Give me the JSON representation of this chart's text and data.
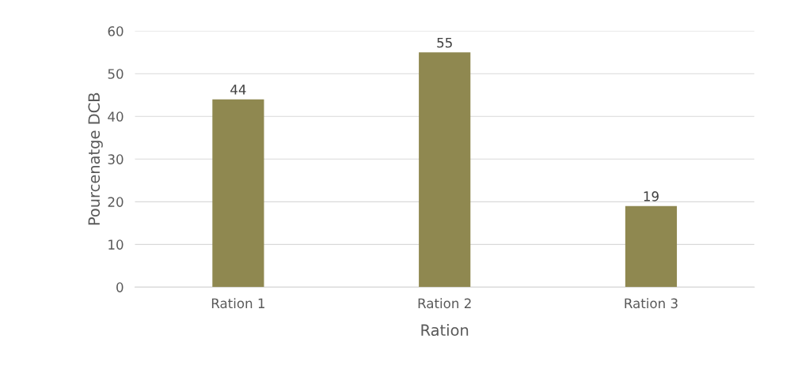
{
  "chart_data": {
    "type": "bar",
    "xlabel": "Ration",
    "ylabel": "Pourcenatge DCB",
    "categories": [
      "Ration 1",
      "Ration 2",
      "Ration 3"
    ],
    "values": [
      44,
      55,
      19
    ],
    "color": "#8f8850",
    "ylim": [
      0,
      60
    ],
    "yticks": [
      0,
      10,
      20,
      30,
      40,
      50,
      60
    ],
    "grid": "y",
    "data_labels": true
  }
}
